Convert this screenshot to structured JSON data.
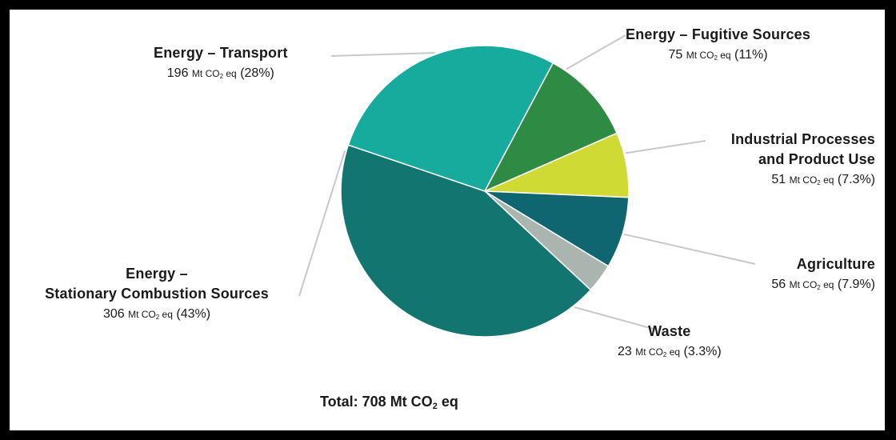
{
  "chart_data": {
    "type": "pie",
    "slices": [
      {
        "name": "Energy – Transport",
        "value": 196,
        "pct": "28%",
        "color": "#16ab9c"
      },
      {
        "name": "Energy – Fugitive Sources",
        "value": 75,
        "pct": "11%",
        "color": "#2e8b43"
      },
      {
        "name": "Industrial Processes and Product Use",
        "value": 51,
        "pct": "7.3%",
        "color": "#cfdb34"
      },
      {
        "name": "Agriculture",
        "value": 56,
        "pct": "7.9%",
        "color": "#106670"
      },
      {
        "name": "Waste",
        "value": 23,
        "pct": "3.3%",
        "color": "#aab5b0"
      },
      {
        "name": "Energy – Stationary Combustion Sources",
        "value": 306,
        "pct": "43%",
        "color": "#127570"
      }
    ],
    "unit_prefix": "Mt CO",
    "unit_sub": "2",
    "unit_suffix": " eq",
    "total_label": "Total: 708 Mt CO",
    "total_sub": "2",
    "total_suffix": " eq"
  },
  "labels": {
    "transport": {
      "name": "Energy – Transport",
      "num": "196",
      "pct": "(28%)"
    },
    "fugitive": {
      "name": "Energy – Fugitive Sources",
      "num": "75",
      "pct": "(11%)"
    },
    "industrial": {
      "name1": "Industrial Processes",
      "name2": "and Product Use",
      "num": "51",
      "pct": "(7.3%)"
    },
    "agriculture": {
      "name": "Agriculture",
      "num": "56",
      "pct": "(7.9%)"
    },
    "waste": {
      "name": "Waste",
      "num": "23",
      "pct": "(3.3%)"
    },
    "stationary": {
      "name1": "Energy –",
      "name2": "Stationary Combustion Sources",
      "num": "306",
      "pct": "(43%)"
    }
  }
}
